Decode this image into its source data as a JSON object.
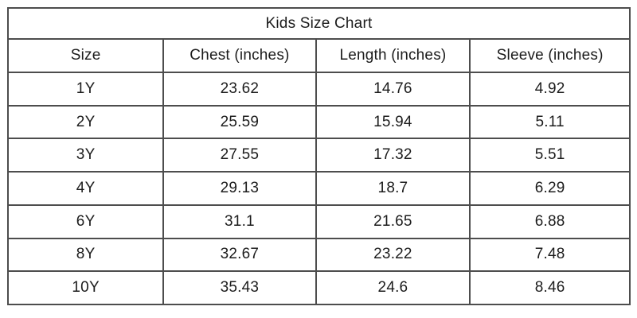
{
  "chart_data": {
    "type": "table",
    "title": "Kids Size Chart",
    "columns": [
      "Size",
      "Chest (inches)",
      "Length (inches)",
      "Sleeve (inches)"
    ],
    "rows": [
      [
        "1Y",
        "23.62",
        "14.76",
        "4.92"
      ],
      [
        "2Y",
        "25.59",
        "15.94",
        "5.11"
      ],
      [
        "3Y",
        "27.55",
        "17.32",
        "5.51"
      ],
      [
        "4Y",
        "29.13",
        "18.7",
        "6.29"
      ],
      [
        "6Y",
        "31.1",
        "21.65",
        "6.88"
      ],
      [
        "8Y",
        "32.67",
        "23.22",
        "7.48"
      ],
      [
        "10Y",
        "35.43",
        "24.6",
        "8.46"
      ]
    ]
  },
  "colors": {
    "border": "#4d4d4d",
    "text": "#1c1c1c",
    "background": "#ffffff"
  }
}
